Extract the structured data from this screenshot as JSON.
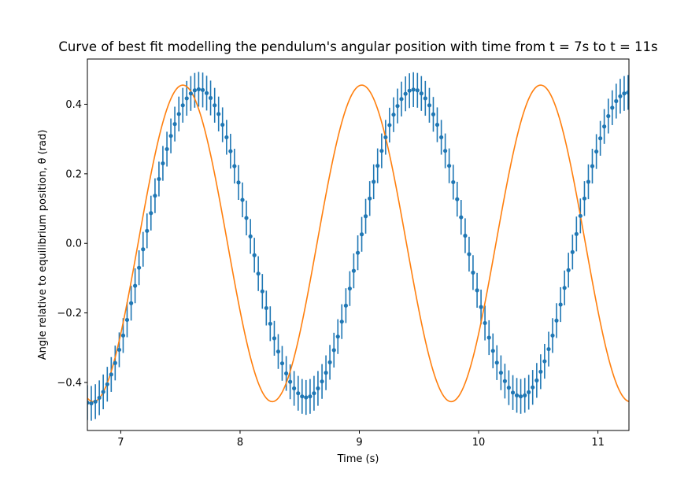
{
  "chart_data": {
    "type": "scatter",
    "title": "Curve of best fit modelling the pendulum's angular position with time from t = 7s to t = 11s",
    "xlabel": "Time (s)",
    "ylabel": "Angle relative to equilibrium position, θ (rad)",
    "xlim": [
      6.72,
      11.26
    ],
    "ylim": [
      -0.538,
      0.53
    ],
    "x_ticks": [
      7,
      8,
      9,
      10,
      11
    ],
    "y_ticks": [
      -0.4,
      -0.2,
      0.0,
      0.2,
      0.4
    ],
    "x_tick_labels": [
      "7",
      "8",
      "9",
      "10",
      "11"
    ],
    "y_tick_labels": [
      "−0.4",
      "−0.2",
      "0.0",
      "0.2",
      "0.4"
    ],
    "grid": false,
    "legend": "none",
    "series": [
      {
        "kind": "measured-points-with-error-bars",
        "color": "#1f77b4",
        "error_bar": 0.05,
        "x": [
          6.72,
          6.753,
          6.787,
          6.82,
          6.853,
          6.887,
          6.92,
          6.953,
          6.987,
          7.02,
          7.053,
          7.087,
          7.12,
          7.153,
          7.187,
          7.22,
          7.253,
          7.287,
          7.32,
          7.353,
          7.387,
          7.42,
          7.453,
          7.487,
          7.52,
          7.553,
          7.587,
          7.62,
          7.653,
          7.687,
          7.72,
          7.753,
          7.787,
          7.82,
          7.853,
          7.887,
          7.92,
          7.953,
          7.987,
          8.02,
          8.053,
          8.087,
          8.12,
          8.153,
          8.187,
          8.22,
          8.253,
          8.287,
          8.32,
          8.353,
          8.387,
          8.42,
          8.453,
          8.487,
          8.52,
          8.553,
          8.587,
          8.62,
          8.653,
          8.687,
          8.72,
          8.753,
          8.787,
          8.82,
          8.853,
          8.887,
          8.92,
          8.953,
          8.987,
          9.02,
          9.053,
          9.087,
          9.12,
          9.153,
          9.187,
          9.22,
          9.253,
          9.287,
          9.32,
          9.353,
          9.387,
          9.42,
          9.453,
          9.487,
          9.52,
          9.553,
          9.587,
          9.62,
          9.653,
          9.687,
          9.72,
          9.753,
          9.787,
          9.82,
          9.853,
          9.887,
          9.92,
          9.953,
          9.987,
          10.02,
          10.053,
          10.087,
          10.12,
          10.153,
          10.187,
          10.22,
          10.253,
          10.287,
          10.32,
          10.353,
          10.387,
          10.42,
          10.453,
          10.487,
          10.52,
          10.553,
          10.587,
          10.62,
          10.653,
          10.687,
          10.72,
          10.753,
          10.787,
          10.82,
          10.853,
          10.887,
          10.92,
          10.953,
          10.987,
          11.02,
          11.053,
          11.087,
          11.12,
          11.153,
          11.187,
          11.22,
          11.253
        ],
        "y": [
          -0.458,
          -0.46,
          -0.455,
          -0.444,
          -0.427,
          -0.405,
          -0.377,
          -0.344,
          -0.306,
          -0.265,
          -0.22,
          -0.172,
          -0.122,
          -0.07,
          -0.017,
          0.036,
          0.087,
          0.137,
          0.185,
          0.23,
          0.271,
          0.309,
          0.343,
          0.372,
          0.397,
          0.417,
          0.431,
          0.44,
          0.443,
          0.441,
          0.432,
          0.418,
          0.397,
          0.372,
          0.341,
          0.305,
          0.265,
          0.222,
          0.175,
          0.125,
          0.073,
          0.02,
          -0.034,
          -0.087,
          -0.138,
          -0.186,
          -0.231,
          -0.273,
          -0.311,
          -0.345,
          -0.374,
          -0.398,
          -0.417,
          -0.431,
          -0.44,
          -0.443,
          -0.44,
          -0.431,
          -0.417,
          -0.397,
          -0.372,
          -0.342,
          -0.307,
          -0.268,
          -0.225,
          -0.179,
          -0.13,
          -0.079,
          -0.027,
          0.026,
          0.078,
          0.129,
          0.177,
          0.223,
          0.266,
          0.305,
          0.34,
          0.37,
          0.395,
          0.415,
          0.43,
          0.439,
          0.442,
          0.44,
          0.431,
          0.417,
          0.397,
          0.371,
          0.341,
          0.305,
          0.266,
          0.223,
          0.176,
          0.127,
          0.075,
          0.022,
          -0.031,
          -0.084,
          -0.135,
          -0.183,
          -0.229,
          -0.271,
          -0.309,
          -0.343,
          -0.372,
          -0.396,
          -0.415,
          -0.429,
          -0.437,
          -0.44,
          -0.437,
          -0.428,
          -0.414,
          -0.394,
          -0.369,
          -0.339,
          -0.304,
          -0.265,
          -0.222,
          -0.176,
          -0.128,
          -0.077,
          -0.025,
          0.027,
          0.079,
          0.129,
          0.177,
          0.222,
          0.264,
          0.302,
          0.336,
          0.366,
          0.39,
          0.409,
          0.423,
          0.431,
          0.434
        ]
      },
      {
        "kind": "fitted-curve",
        "color": "#ff7f0e",
        "function": "0.455*cos(2*pi*(t-7.52)/1.50)"
      }
    ]
  }
}
